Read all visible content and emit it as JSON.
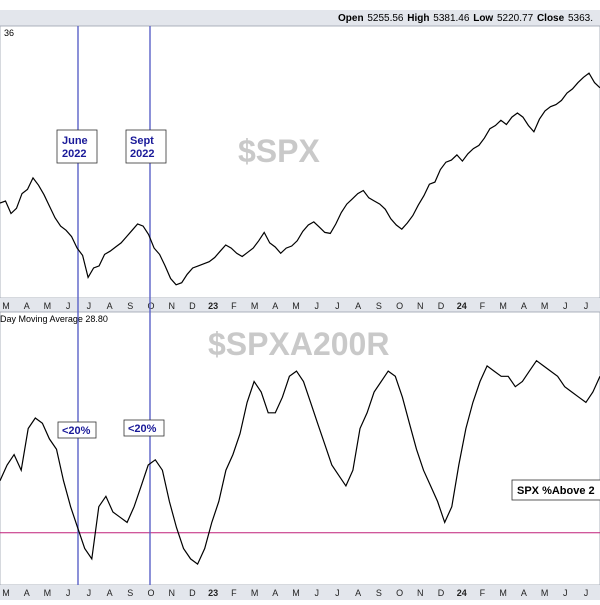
{
  "ohlc": {
    "open_label": "Open",
    "open": "5255.56",
    "high_label": "High",
    "high": "5381.46",
    "low_label": "Low",
    "low": "5220.77",
    "close_label": "Close",
    "close": "5363."
  },
  "panel1": {
    "header_fragment": "36",
    "watermark": "$SPX"
  },
  "panel2": {
    "header_fragment": "Day Moving Average 28.80",
    "watermark": "$SPXA200R",
    "box_label": "SPX %Above 2"
  },
  "annotations": {
    "june_line1": "June",
    "june_line2": "2022",
    "sept_line1": "Sept",
    "sept_line2": "2022",
    "june_below": "<20%",
    "sept_below": "<20%"
  },
  "axis_labels": [
    "M",
    "A",
    "M",
    "J",
    "J",
    "A",
    "S",
    "O",
    "N",
    "D",
    "23",
    "F",
    "M",
    "A",
    "M",
    "J",
    "J",
    "A",
    "S",
    "O",
    "N",
    "D",
    "24",
    "F",
    "M",
    "A",
    "M",
    "J",
    "J"
  ],
  "colors": {
    "background": "#ffffff",
    "panel_bg": "#ffffff",
    "axis_strip": "#e3e6ec",
    "grid": "#d9dce3",
    "series": "#000000",
    "vline": "#5a62c7",
    "threshold_line": "#c0207a",
    "watermark": "#c9c9c9",
    "callout_text": "#1a1a99"
  },
  "chart_data": [
    {
      "type": "line",
      "series": [
        {
          "values": [
            4380,
            4400,
            4280,
            4330,
            4470,
            4510,
            4620,
            4550,
            4460,
            4350,
            4240,
            4160,
            4120,
            4060,
            3950,
            3880,
            3670,
            3760,
            3780,
            3890,
            3920,
            3960,
            4000,
            4060,
            4120,
            4180,
            4160,
            4080,
            3950,
            3890,
            3780,
            3660,
            3600,
            3620,
            3700,
            3760,
            3780,
            3800,
            3820,
            3860,
            3920,
            3980,
            3950,
            3900,
            3870,
            3910,
            3950,
            4020,
            4100,
            4000,
            3960,
            3900,
            3950,
            3970,
            4020,
            4110,
            4170,
            4200,
            4150,
            4100,
            4090,
            4180,
            4290,
            4370,
            4420,
            4470,
            4500,
            4430,
            4400,
            4370,
            4320,
            4230,
            4170,
            4130,
            4190,
            4260,
            4360,
            4450,
            4560,
            4580,
            4700,
            4770,
            4790,
            4840,
            4780,
            4850,
            4900,
            4930,
            5000,
            5090,
            5120,
            5170,
            5130,
            5200,
            5240,
            5200,
            5120,
            5060,
            5180,
            5260,
            5300,
            5320,
            5360,
            5430,
            5470,
            5530,
            5580,
            5620,
            5530,
            5480
          ]
        }
      ],
      "watermark": "$SPX"
    },
    {
      "type": "line",
      "series": [
        {
          "values": [
            40,
            46,
            50,
            44,
            60,
            64,
            62,
            56,
            52,
            40,
            30,
            22,
            14,
            10,
            30,
            34,
            28,
            26,
            24,
            30,
            38,
            46,
            48,
            44,
            32,
            22,
            14,
            10,
            8,
            14,
            24,
            32,
            44,
            50,
            58,
            70,
            78,
            74,
            66,
            66,
            72,
            80,
            82,
            78,
            70,
            62,
            54,
            46,
            42,
            38,
            44,
            60,
            66,
            74,
            78,
            82,
            80,
            72,
            62,
            52,
            44,
            38,
            32,
            24,
            30,
            46,
            60,
            70,
            78,
            84,
            82,
            80,
            80,
            76,
            78,
            82,
            86,
            84,
            82,
            80,
            76,
            74,
            72,
            70,
            74,
            80
          ]
        }
      ],
      "threshold": 20,
      "watermark": "$SPXA200R"
    }
  ]
}
